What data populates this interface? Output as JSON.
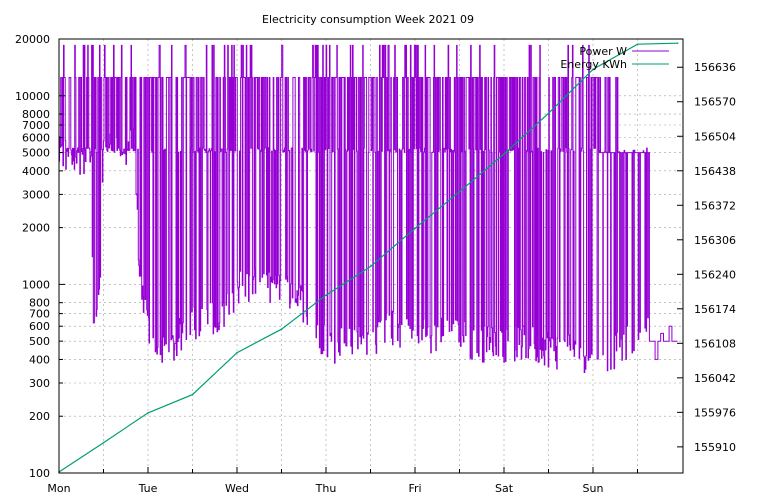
{
  "chart_data": {
    "type": "line",
    "title": "Electricity consumption Week 2021 09",
    "x_ticks": [
      "Mon",
      "Tue",
      "Wed",
      "Thu",
      "Fri",
      "Sat",
      "Sun"
    ],
    "y_left": {
      "scale": "log",
      "range": [
        100,
        20000
      ],
      "ticks": [
        100,
        200,
        300,
        400,
        500,
        600,
        700,
        800,
        1000,
        2000,
        3000,
        4000,
        5000,
        6000,
        7000,
        8000,
        10000,
        20000
      ]
    },
    "y_right": {
      "scale": "linear",
      "range": [
        155860,
        156690
      ],
      "ticks": [
        155910,
        155976,
        156042,
        156108,
        156174,
        156240,
        156306,
        156372,
        156438,
        156504,
        156570,
        156636
      ]
    },
    "grid": true,
    "legend_position": "top-right",
    "colors": {
      "power": "#9400d3",
      "energy": "#009e73",
      "grid": "#a0a0a0"
    },
    "series": [
      {
        "name": "Power W",
        "axis": "left",
        "color": "#9400d3",
        "base_level": 5000,
        "peak_level": 12500,
        "spike_level": 18500,
        "dip_levels": {
          "mon_to_tue": 700,
          "tue": 400,
          "tue_to_wed": 600,
          "wed": 900,
          "wed_to_thu": 800,
          "thu": 450,
          "thu_to_fri": 550,
          "fri": 500,
          "sat": 450,
          "sun": 400,
          "sun_end": 500
        }
      },
      {
        "name": "Energy KWh",
        "axis": "right",
        "color": "#009e73",
        "x": [
          0,
          0.5,
          1,
          1.5,
          2,
          2.5,
          3,
          3.5,
          4,
          4.5,
          5,
          5.5,
          6,
          6.5,
          6.95
        ],
        "values": [
          155862,
          155918,
          155975,
          156010,
          156090,
          156135,
          156200,
          156255,
          156328,
          156398,
          156470,
          156548,
          156632,
          156680,
          156682
        ]
      }
    ]
  }
}
